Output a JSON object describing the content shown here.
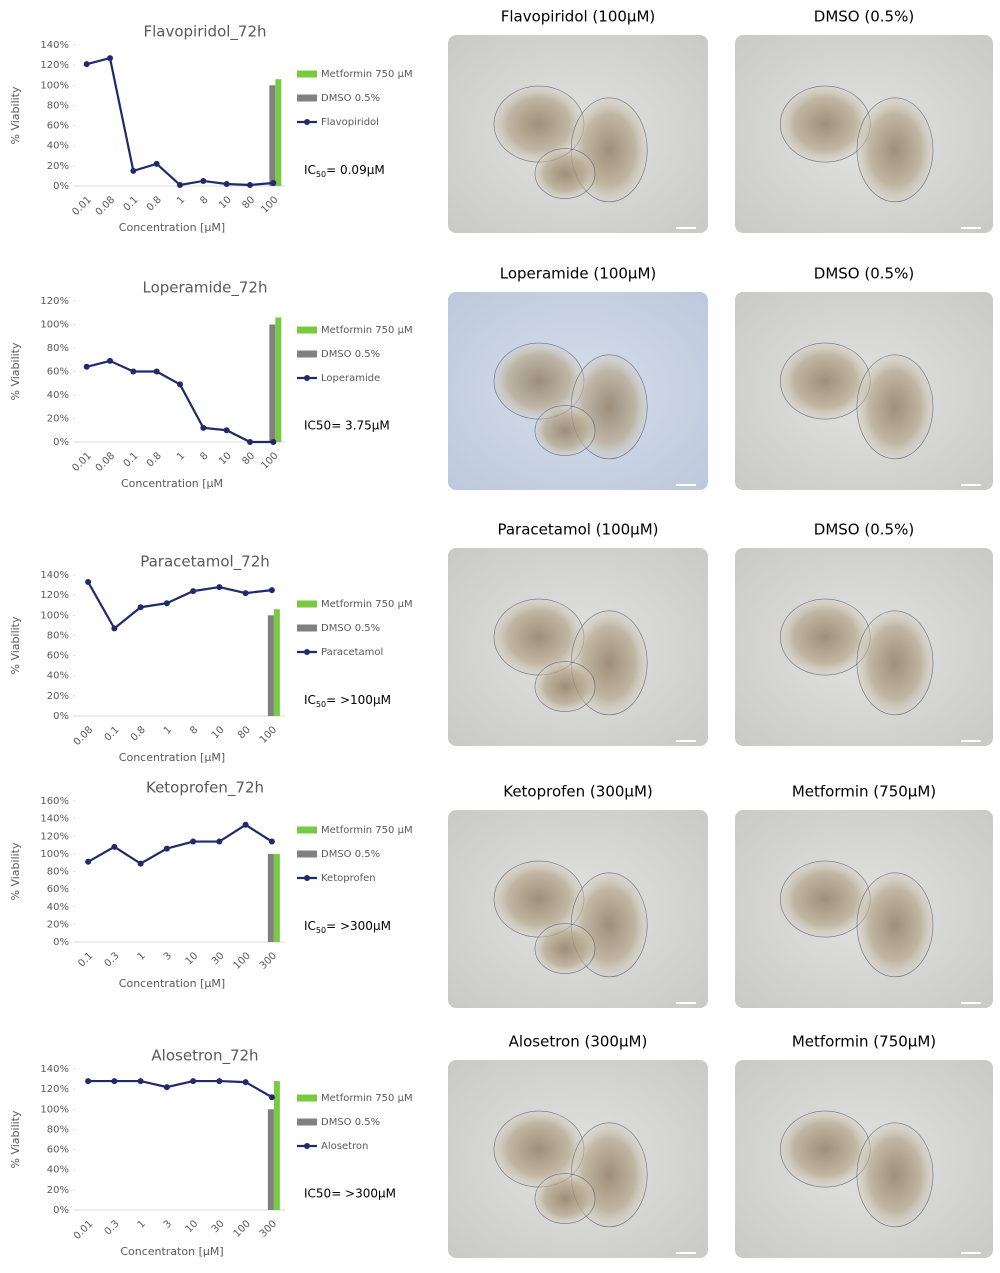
{
  "chart_data": [
    {
      "type": "line",
      "title": "Flavopiridol_72h",
      "y_label": "% Viability",
      "x_label": "Concentration [µM]",
      "categories": [
        "0.01",
        "0.08",
        "0.1",
        "0.8",
        "1",
        "8",
        "10",
        "80",
        "100"
      ],
      "series": [
        {
          "name": "Metformin 750 µM",
          "type": "bar",
          "color": "#7ac943",
          "values": [
            null,
            null,
            null,
            null,
            null,
            null,
            null,
            null,
            106
          ]
        },
        {
          "name": "DMSO 0.5%",
          "type": "bar",
          "color": "#808080",
          "values": [
            null,
            null,
            null,
            null,
            null,
            null,
            null,
            null,
            100
          ]
        },
        {
          "name": "Flavopiridol",
          "type": "line",
          "color": "#1f2a6b",
          "values": [
            121,
            127,
            15,
            22,
            1,
            5,
            2,
            1,
            3
          ]
        }
      ],
      "ylim": [
        0,
        140
      ],
      "yticks": [
        {
          "value": 0,
          "label": "0%"
        },
        {
          "value": 20,
          "label": "20%"
        },
        {
          "value": 40,
          "label": "40%"
        },
        {
          "value": 60,
          "label": "60%"
        },
        {
          "value": 80,
          "label": "80%"
        },
        {
          "value": 100,
          "label": "100%"
        },
        {
          "value": 120,
          "label": "120%"
        },
        {
          "value": 140,
          "label": "140%"
        }
      ],
      "annotation": {
        "prefix": "IC",
        "subscript": "50",
        "text": "= 0.09µM"
      }
    },
    {
      "type": "line",
      "title": "Loperamide_72h",
      "y_label": "% Viability",
      "x_label": "Concentration [µM",
      "categories": [
        "0.01",
        "0.08",
        "0.1",
        "0.8",
        "1",
        "8",
        "10",
        "80",
        "100"
      ],
      "series": [
        {
          "name": "Metformin 750 µM",
          "type": "bar",
          "color": "#7ac943",
          "values": [
            null,
            null,
            null,
            null,
            null,
            null,
            null,
            null,
            106
          ]
        },
        {
          "name": "DMSO 0.5%",
          "type": "bar",
          "color": "#808080",
          "values": [
            null,
            null,
            null,
            null,
            null,
            null,
            null,
            null,
            100
          ]
        },
        {
          "name": "Loperamide",
          "type": "line",
          "color": "#1f2a6b",
          "values": [
            64,
            69,
            60,
            60,
            49,
            12,
            10,
            0,
            0
          ]
        }
      ],
      "ylim": [
        0,
        120
      ],
      "yticks": [
        {
          "value": 0,
          "label": "0%"
        },
        {
          "value": 20,
          "label": "20%"
        },
        {
          "value": 40,
          "label": "40%"
        },
        {
          "value": 60,
          "label": "60%"
        },
        {
          "value": 80,
          "label": "80%"
        },
        {
          "value": 100,
          "label": "100%"
        },
        {
          "value": 120,
          "label": "120%"
        }
      ],
      "annotation": "IC50= 3.75µM"
    },
    {
      "type": "line",
      "title": "Paracetamol_72h",
      "y_label": "% Viability",
      "x_label": "Concentration [µM]",
      "categories": [
        "0.08",
        "0.1",
        "0.8",
        "1",
        "8",
        "10",
        "80",
        "100"
      ],
      "series": [
        {
          "name": "Metformin 750 µM",
          "type": "bar",
          "color": "#7ac943",
          "values": [
            null,
            null,
            null,
            null,
            null,
            null,
            null,
            106
          ]
        },
        {
          "name": "DMSO 0.5%",
          "type": "bar",
          "color": "#808080",
          "values": [
            null,
            null,
            null,
            null,
            null,
            null,
            null,
            100
          ]
        },
        {
          "name": "Paracetamol",
          "type": "line",
          "color": "#1f2a6b",
          "values": [
            133,
            87,
            108,
            112,
            124,
            128,
            122,
            125
          ]
        }
      ],
      "ylim": [
        0,
        140
      ],
      "yticks": [
        {
          "value": 0,
          "label": "0%"
        },
        {
          "value": 20,
          "label": "20%"
        },
        {
          "value": 40,
          "label": "40%"
        },
        {
          "value": 60,
          "label": "60%"
        },
        {
          "value": 80,
          "label": "80%"
        },
        {
          "value": 100,
          "label": "100%"
        },
        {
          "value": 120,
          "label": "120%"
        },
        {
          "value": 140,
          "label": "140%"
        }
      ],
      "annotation": {
        "prefix": "IC",
        "subscript": "50",
        "text": "= >100µM"
      }
    },
    {
      "type": "line",
      "title": "Ketoprofen_72h",
      "y_label": "% Viability",
      "x_label": "Concentration [µM]",
      "categories": [
        "0.1",
        "0.3",
        "1",
        "3",
        "10",
        "30",
        "100",
        "300"
      ],
      "series": [
        {
          "name": "Metformin 750 µM",
          "type": "bar",
          "color": "#7ac943",
          "values": [
            null,
            null,
            null,
            null,
            null,
            null,
            null,
            100
          ]
        },
        {
          "name": "DMSO 0.5%",
          "type": "bar",
          "color": "#808080",
          "values": [
            null,
            null,
            null,
            null,
            null,
            null,
            null,
            100
          ]
        },
        {
          "name": "Ketoprofen",
          "type": "line",
          "color": "#1f2a6b",
          "values": [
            91,
            108,
            89,
            106,
            114,
            114,
            133,
            114
          ]
        }
      ],
      "ylim": [
        0,
        160
      ],
      "yticks": [
        {
          "value": 0,
          "label": "0%"
        },
        {
          "value": 20,
          "label": "20%"
        },
        {
          "value": 40,
          "label": "40%"
        },
        {
          "value": 60,
          "label": "60%"
        },
        {
          "value": 80,
          "label": "80%"
        },
        {
          "value": 100,
          "label": "100%"
        },
        {
          "value": 120,
          "label": "120%"
        },
        {
          "value": 140,
          "label": "140%"
        },
        {
          "value": 160,
          "label": "160%"
        }
      ],
      "annotation": {
        "prefix": "IC",
        "subscript": "50",
        "text": "= >300µM"
      }
    },
    {
      "type": "line",
      "title": "Alosetron_72h",
      "y_label": "% Viability",
      "x_label": "Concentraton [µM]",
      "categories": [
        "0.01",
        "0.3",
        "1",
        "3",
        "10",
        "30",
        "100",
        "300"
      ],
      "series": [
        {
          "name": "Metformin 750 µM",
          "type": "bar",
          "color": "#7ac943",
          "values": [
            null,
            null,
            null,
            null,
            null,
            null,
            null,
            128
          ]
        },
        {
          "name": "DMSO 0.5%",
          "type": "bar",
          "color": "#808080",
          "values": [
            null,
            null,
            null,
            null,
            null,
            null,
            null,
            100
          ]
        },
        {
          "name": "Alosetron",
          "type": "line",
          "color": "#1f2a6b",
          "values": [
            128,
            128,
            128,
            122,
            128,
            128,
            127,
            112
          ]
        }
      ],
      "ylim": [
        0,
        140
      ],
      "yticks": [
        {
          "value": 0,
          "label": "0%"
        },
        {
          "value": 20,
          "label": "20%"
        },
        {
          "value": 40,
          "label": "40%"
        },
        {
          "value": 60,
          "label": "60%"
        },
        {
          "value": 80,
          "label": "80%"
        },
        {
          "value": 100,
          "label": "100%"
        },
        {
          "value": 120,
          "label": "120%"
        },
        {
          "value": 140,
          "label": "140%"
        }
      ],
      "annotation": "IC50= >300µM"
    }
  ],
  "images": [
    {
      "title": "Flavopiridol (100µM)"
    },
    {
      "title": "DMSO (0.5%)"
    },
    {
      "title": "Loperamide (100µM)"
    },
    {
      "title": "DMSO (0.5%)"
    },
    {
      "title": "Paracetamol (100µM)"
    },
    {
      "title": "DMSO (0.5%)"
    },
    {
      "title": "Ketoprofen (300µM)"
    },
    {
      "title": "Metformin (750µM)"
    },
    {
      "title": "Alosetron (300µM)"
    },
    {
      "title": "Metformin (750µM)"
    }
  ]
}
